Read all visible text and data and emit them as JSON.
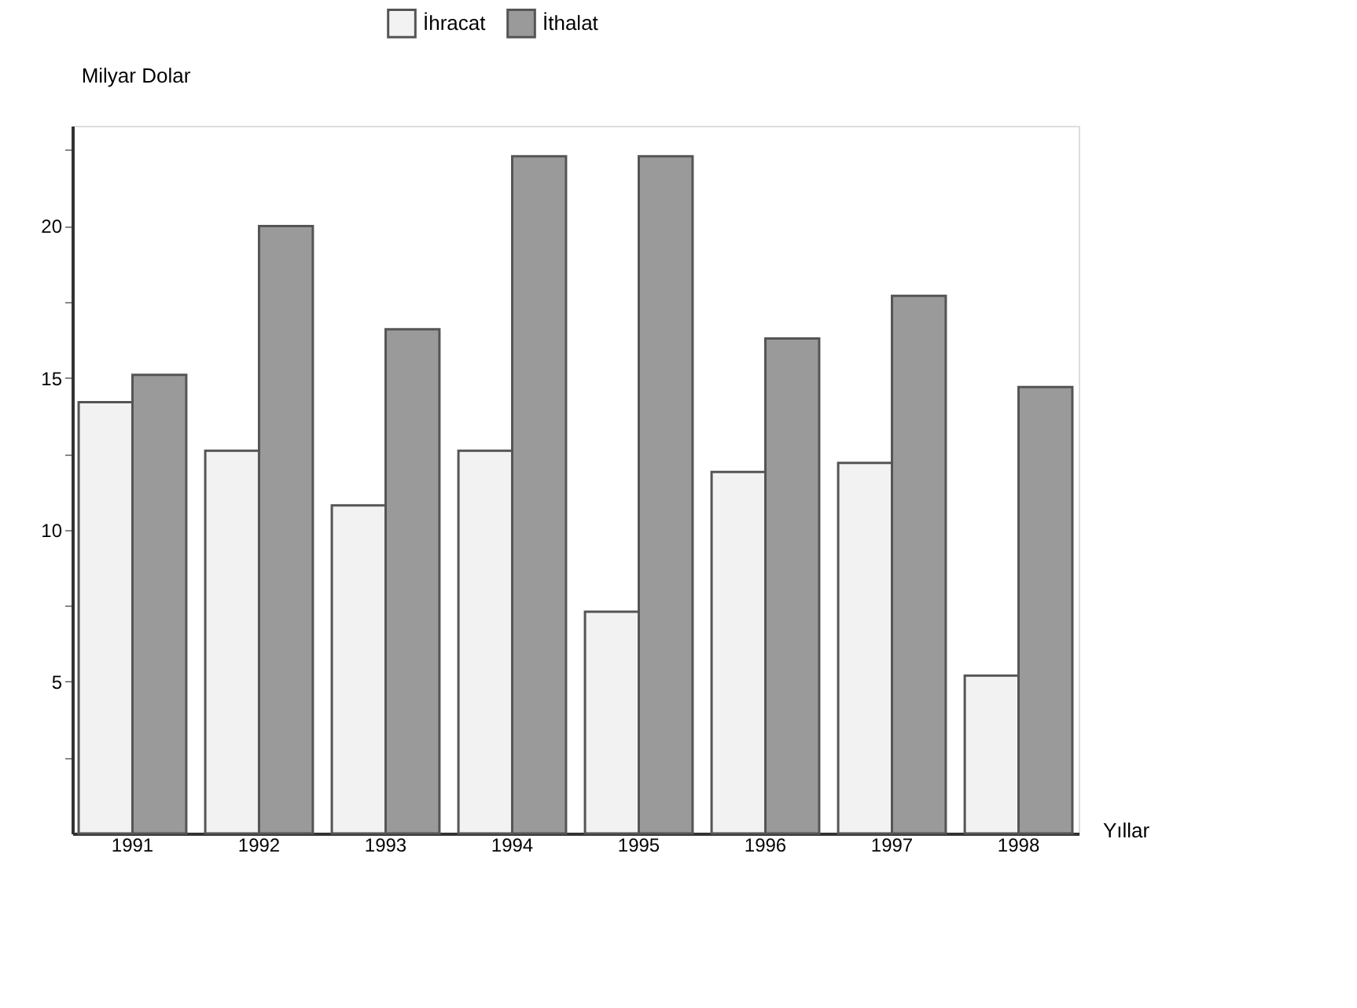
{
  "chart_data": {
    "type": "bar",
    "ylabel": "Milyar Dolar",
    "xlabel": "Yıllar",
    "categories": [
      "1991",
      "1992",
      "1993",
      "1994",
      "1995",
      "1996",
      "1997",
      "1998"
    ],
    "series": [
      {
        "name": "İhracat",
        "color": "#f2f2f2",
        "values": [
          14.2,
          12.6,
          10.8,
          12.6,
          7.3,
          11.9,
          12.2,
          5.2
        ]
      },
      {
        "name": "İthalat",
        "color": "#9a9a9a",
        "values": [
          15.1,
          20.0,
          16.6,
          22.3,
          22.3,
          16.3,
          17.7,
          14.7
        ]
      }
    ],
    "ylim": [
      0,
      23.3
    ],
    "yticks": [
      {
        "value": 2.5,
        "label": null
      },
      5,
      {
        "value": 7.5,
        "label": null
      },
      10,
      {
        "value": 12.5,
        "label": null
      },
      15,
      {
        "value": 17.5,
        "label": null
      },
      20,
      {
        "value": 22.5,
        "label": null
      }
    ],
    "grid": false,
    "legend": "top"
  }
}
